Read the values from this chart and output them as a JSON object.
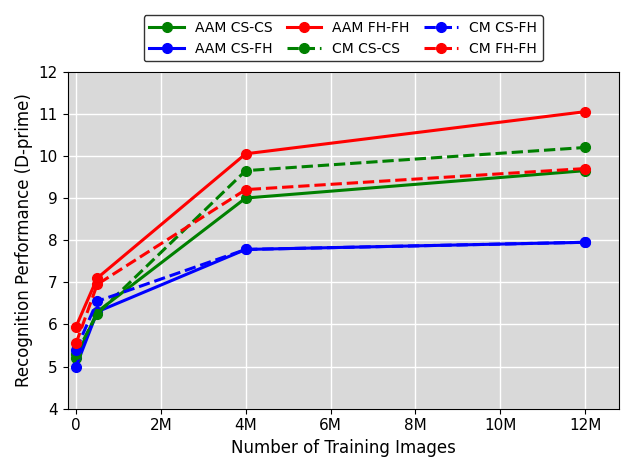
{
  "x_values": [
    0,
    500000,
    4000000,
    12000000
  ],
  "series": [
    {
      "label": "AAM CS-CS",
      "color": "#008000",
      "linestyle": "solid",
      "marker": "o",
      "values": [
        5.2,
        6.3,
        9.0,
        9.65
      ]
    },
    {
      "label": "AAM CS-FH",
      "color": "#0000FF",
      "linestyle": "solid",
      "marker": "o",
      "values": [
        5.0,
        6.3,
        7.78,
        7.95
      ]
    },
    {
      "label": "AAM FH-FH",
      "color": "#FF0000",
      "linestyle": "solid",
      "marker": "o",
      "values": [
        5.95,
        7.1,
        10.05,
        11.05
      ]
    },
    {
      "label": "CM CS-CS",
      "color": "#008000",
      "linestyle": "dashed",
      "marker": "o",
      "values": [
        5.3,
        6.25,
        9.65,
        10.2
      ]
    },
    {
      "label": "CM CS-FH",
      "color": "#0000FF",
      "linestyle": "dashed",
      "marker": "o",
      "values": [
        5.4,
        6.55,
        7.78,
        7.95
      ]
    },
    {
      "label": "CM FH-FH",
      "color": "#FF0000",
      "linestyle": "dashed",
      "marker": "o",
      "values": [
        5.55,
        6.95,
        9.2,
        9.7
      ]
    }
  ],
  "xlabel": "Number of Training Images",
  "ylabel": "Recognition Performance (D-prime)",
  "ylim": [
    4,
    12
  ],
  "yticks": [
    4,
    5,
    6,
    7,
    8,
    9,
    10,
    11,
    12
  ],
  "xticks": [
    0,
    2000000,
    4000000,
    6000000,
    8000000,
    10000000,
    12000000
  ],
  "xtick_labels": [
    "0",
    "2M",
    "4M",
    "6M",
    "8M",
    "10M",
    "12M"
  ],
  "legend_order": [
    "AAM CS-CS",
    "AAM CS-FH",
    "AAM FH-FH",
    "CM CS-CS",
    "CM CS-FH",
    "CM FH-FH"
  ],
  "legend_ncol": 3,
  "grid_color": "#ffffff",
  "background_color": "#d9d9d9",
  "linewidth": 2.2,
  "markersize": 7
}
